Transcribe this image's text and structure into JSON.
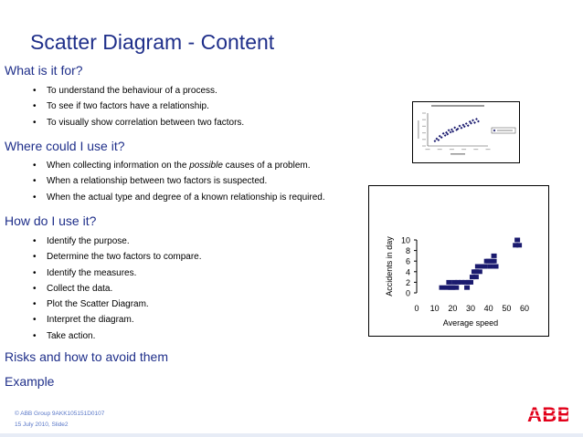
{
  "slide": {
    "title": "Scatter Diagram - Content"
  },
  "sections": [
    {
      "heading": "What is it for?",
      "bullets": [
        {
          "text": "To understand the behaviour of a process."
        },
        {
          "text": "To see if two factors have a relationship."
        },
        {
          "text": "To visually show correlation between two factors."
        }
      ]
    },
    {
      "heading": "Where could I use it?",
      "bullets": [
        {
          "before": "When collecting information on the ",
          "emph": "possible",
          "after": " causes of a problem."
        },
        {
          "text": "When a relationship between two factors is suspected."
        },
        {
          "text": "When the actual type and degree of a known relationship is required."
        }
      ]
    },
    {
      "heading": "How do I use it?",
      "bullets": [
        {
          "text": "Identify the purpose."
        },
        {
          "text": "Determine the two factors to compare."
        },
        {
          "text": "Identify the measures."
        },
        {
          "text": "Collect the data."
        },
        {
          "text": "Plot the Scatter Diagram."
        },
        {
          "text": "Interpret the diagram."
        },
        {
          "text": "Take action."
        }
      ]
    },
    {
      "heading": "Risks and how to avoid them",
      "bullets": []
    },
    {
      "heading": "Example",
      "bullets": []
    }
  ],
  "footer": {
    "line1": "© ABB Group   9AKK105151D0107",
    "line2": "15 July 2010,  Slide2"
  },
  "logo": {
    "text": "ABB",
    "color": "#e2001a"
  },
  "accent_color": "#1f2f8a",
  "chart_data": [
    {
      "type": "scatter",
      "title": "",
      "xlabel": "Average speed",
      "ylabel": "Accidents in day",
      "xlim": [
        0,
        60
      ],
      "ylim": [
        0,
        10
      ],
      "xticks": [
        0,
        10,
        20,
        30,
        40,
        50,
        60
      ],
      "yticks": [
        0,
        2,
        4,
        6,
        8,
        10
      ],
      "marker_color": "#1a1a6e",
      "marker": "square",
      "grid": false,
      "legend": "none",
      "x": [
        14,
        17,
        18,
        19,
        20,
        21,
        22,
        23,
        25,
        27,
        28,
        29,
        30,
        31,
        32,
        33,
        33,
        34,
        35,
        35,
        36,
        38,
        39,
        40,
        41,
        42,
        43,
        43,
        44,
        55,
        56,
        57
      ],
      "y": [
        1,
        1,
        2,
        1,
        1,
        2,
        1,
        2,
        2,
        2,
        1,
        2,
        2,
        3,
        4,
        3,
        4,
        5,
        4,
        5,
        5,
        5,
        6,
        6,
        5,
        6,
        6,
        7,
        5,
        9,
        10,
        9
      ]
    },
    {
      "type": "scatter",
      "title": "",
      "xlabel": "",
      "ylabel": "",
      "xlim": [
        0,
        10
      ],
      "ylim": [
        0,
        10
      ],
      "marker_color": "#1a1a6e",
      "marker": "diamond",
      "grid": false,
      "legend": "right",
      "note": "thumbnail chart; printed text is illegible at this resolution",
      "x": [
        1.2,
        1.5,
        1.8,
        2.0,
        2.3,
        2.6,
        2.9,
        3.1,
        3.3,
        3.5,
        3.8,
        4.0,
        4.2,
        4.5,
        4.8,
        5.0,
        5.3,
        5.6,
        5.9,
        6.1,
        6.4,
        6.7,
        7.0,
        7.2,
        7.5,
        7.8,
        8.1,
        8.4
      ],
      "y": [
        1.5,
        2.2,
        1.8,
        3.0,
        2.6,
        3.8,
        3.2,
        4.1,
        3.6,
        4.8,
        4.2,
        5.0,
        4.4,
        5.6,
        4.9,
        5.2,
        6.1,
        5.5,
        6.4,
        5.9,
        6.8,
        6.2,
        7.4,
        6.9,
        7.8,
        7.1,
        8.2,
        7.5
      ]
    }
  ]
}
